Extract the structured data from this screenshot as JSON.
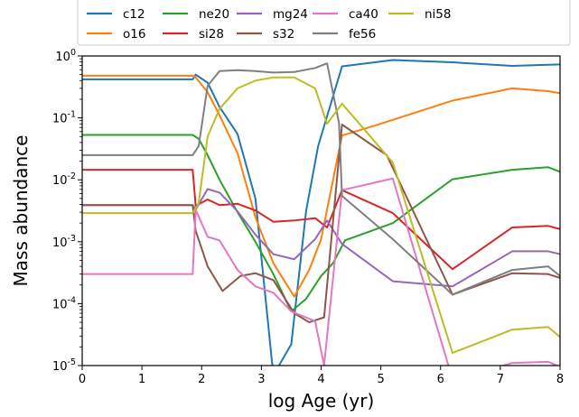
{
  "chart_data": {
    "type": "line",
    "xlabel": "log Age (yr)",
    "ylabel": "Mass abundance",
    "xlim": [
      0,
      8
    ],
    "ylim_log10": [
      -5,
      0
    ],
    "yscale": "log",
    "x_ticks": [
      "0",
      "1",
      "2",
      "3",
      "4",
      "5",
      "6",
      "7",
      "8"
    ],
    "y_ticks": [
      {
        "exp": 0,
        "base": "10",
        "sup": "0"
      },
      {
        "exp": -1,
        "base": "10",
        "sup": "-1"
      },
      {
        "exp": -2,
        "base": "10",
        "sup": "-2"
      },
      {
        "exp": -3,
        "base": "10",
        "sup": "-3"
      },
      {
        "exp": -4,
        "base": "10",
        "sup": "-4"
      },
      {
        "exp": -5,
        "base": "10",
        "sup": "-5"
      }
    ],
    "legend_position": "top",
    "grid": false,
    "series": [
      {
        "name": "c12",
        "color": "#1f77b4",
        "points": [
          [
            0,
            0.42
          ],
          [
            1.85,
            0.42
          ],
          [
            1.9,
            0.5
          ],
          [
            2.1,
            0.37
          ],
          [
            2.3,
            0.15
          ],
          [
            2.6,
            0.055
          ],
          [
            2.9,
            0.005
          ],
          [
            3.2,
            7e-06
          ],
          [
            3.5,
            2.2e-05
          ],
          [
            3.75,
            0.0032
          ],
          [
            3.95,
            0.035
          ],
          [
            4.35,
            0.68
          ],
          [
            5.2,
            0.86
          ],
          [
            6.2,
            0.79
          ],
          [
            7.2,
            0.69
          ],
          [
            7.8,
            0.72
          ],
          [
            8,
            0.73
          ]
        ]
      },
      {
        "name": "o16",
        "color": "#ff7f0e",
        "points": [
          [
            0,
            0.48
          ],
          [
            1.85,
            0.48
          ],
          [
            1.9,
            0.45
          ],
          [
            2.1,
            0.26
          ],
          [
            2.3,
            0.11
          ],
          [
            2.6,
            0.027
          ],
          [
            2.9,
            0.0025
          ],
          [
            3.2,
            0.00045
          ],
          [
            3.55,
            0.00013
          ],
          [
            3.8,
            0.00035
          ],
          [
            4.0,
            0.0011
          ],
          [
            4.35,
            0.052
          ],
          [
            4.9,
            0.075
          ],
          [
            6.2,
            0.19
          ],
          [
            7.2,
            0.3
          ],
          [
            7.8,
            0.27
          ],
          [
            8,
            0.25
          ]
        ]
      },
      {
        "name": "ne20",
        "color": "#2ca02c",
        "points": [
          [
            0,
            0.053
          ],
          [
            1.85,
            0.053
          ],
          [
            1.95,
            0.046
          ],
          [
            2.1,
            0.025
          ],
          [
            2.3,
            0.01
          ],
          [
            2.6,
            0.003
          ],
          [
            2.9,
            0.001
          ],
          [
            3.2,
            0.0003
          ],
          [
            3.5,
            7.5e-05
          ],
          [
            3.75,
            0.00012
          ],
          [
            4.0,
            0.00028
          ],
          [
            4.2,
            0.00045
          ],
          [
            4.4,
            0.00105
          ],
          [
            5.2,
            0.002
          ],
          [
            6.2,
            0.0102
          ],
          [
            7.2,
            0.0145
          ],
          [
            7.8,
            0.016
          ],
          [
            8,
            0.0135
          ]
        ]
      },
      {
        "name": "si28",
        "color": "#d62728",
        "points": [
          [
            0,
            0.0145
          ],
          [
            1.85,
            0.0145
          ],
          [
            1.9,
            0.0038
          ],
          [
            2.1,
            0.0048
          ],
          [
            2.3,
            0.0039
          ],
          [
            2.6,
            0.0041
          ],
          [
            2.9,
            0.0032
          ],
          [
            3.2,
            0.0021
          ],
          [
            3.55,
            0.0022
          ],
          [
            3.9,
            0.0024
          ],
          [
            4.1,
            0.0017
          ],
          [
            4.35,
            0.0068
          ],
          [
            5.2,
            0.0029
          ],
          [
            6.2,
            0.00036
          ],
          [
            7.2,
            0.0017
          ],
          [
            7.8,
            0.0018
          ],
          [
            8,
            0.0016
          ]
        ]
      },
      {
        "name": "mg24",
        "color": "#9467bd",
        "points": [
          [
            0,
            0.0039
          ],
          [
            1.85,
            0.0039
          ],
          [
            1.9,
            0.0033
          ],
          [
            2.1,
            0.0071
          ],
          [
            2.3,
            0.0062
          ],
          [
            2.6,
            0.0031
          ],
          [
            2.9,
            0.0013
          ],
          [
            3.2,
            0.00063
          ],
          [
            3.55,
            0.00052
          ],
          [
            3.9,
            0.0011
          ],
          [
            4.1,
            0.0022
          ],
          [
            4.35,
            0.00092
          ],
          [
            5.2,
            0.00023
          ],
          [
            6.2,
            0.00019
          ],
          [
            7.2,
            0.0007
          ],
          [
            7.8,
            0.0007
          ],
          [
            8,
            0.00063
          ]
        ]
      },
      {
        "name": "s32",
        "color": "#8c564b",
        "points": [
          [
            0,
            0.0039
          ],
          [
            1.85,
            0.0039
          ],
          [
            1.9,
            0.0015
          ],
          [
            2.1,
            0.0004
          ],
          [
            2.35,
            0.00016
          ],
          [
            2.65,
            0.00028
          ],
          [
            2.9,
            0.00031
          ],
          [
            3.2,
            0.00024
          ],
          [
            3.55,
            7e-05
          ],
          [
            3.8,
            5e-05
          ],
          [
            4.05,
            6e-05
          ],
          [
            4.35,
            0.078
          ],
          [
            5.1,
            0.025
          ],
          [
            6.2,
            0.00014
          ],
          [
            7.2,
            0.00031
          ],
          [
            7.8,
            0.0003
          ],
          [
            8,
            0.00026
          ]
        ]
      },
      {
        "name": "ca40",
        "color": "#e377c2",
        "points": [
          [
            0,
            0.0003
          ],
          [
            1.85,
            0.0003
          ],
          [
            1.9,
            0.0033
          ],
          [
            2.1,
            0.0012
          ],
          [
            2.3,
            0.00105
          ],
          [
            2.6,
            0.00035
          ],
          [
            2.9,
            0.00019
          ],
          [
            3.2,
            0.00015
          ],
          [
            3.5,
            7.5e-05
          ],
          [
            3.9,
            5.2e-05
          ],
          [
            4.05,
            1e-05
          ],
          [
            4.35,
            0.0068
          ],
          [
            5.2,
            0.0105
          ],
          [
            6.2,
            6e-06
          ],
          [
            7.2,
            1.1e-05
          ],
          [
            7.8,
            1.15e-05
          ],
          [
            8,
            9.5e-06
          ]
        ]
      },
      {
        "name": "fe56",
        "color": "#7f7f7f",
        "points": [
          [
            0,
            0.025
          ],
          [
            1.85,
            0.025
          ],
          [
            1.95,
            0.035
          ],
          [
            2.1,
            0.33
          ],
          [
            2.3,
            0.57
          ],
          [
            2.6,
            0.59
          ],
          [
            2.9,
            0.57
          ],
          [
            3.2,
            0.54
          ],
          [
            3.55,
            0.55
          ],
          [
            3.9,
            0.64
          ],
          [
            4.1,
            0.76
          ],
          [
            4.3,
            0.082
          ],
          [
            4.35,
            0.0055
          ],
          [
            5.2,
            0.0011
          ],
          [
            6.2,
            0.00014
          ],
          [
            7.2,
            0.00035
          ],
          [
            7.8,
            0.0004
          ],
          [
            8,
            0.00028
          ]
        ]
      },
      {
        "name": "ni58",
        "color": "#bcbd22",
        "points": [
          [
            0,
            0.0029
          ],
          [
            1.85,
            0.0029
          ],
          [
            1.95,
            0.0042
          ],
          [
            2.1,
            0.05
          ],
          [
            2.3,
            0.14
          ],
          [
            2.6,
            0.3
          ],
          [
            2.9,
            0.4
          ],
          [
            3.2,
            0.45
          ],
          [
            3.55,
            0.45
          ],
          [
            3.9,
            0.3
          ],
          [
            4.1,
            0.08
          ],
          [
            4.35,
            0.17
          ],
          [
            5.2,
            0.019
          ],
          [
            6.2,
            1.6e-05
          ],
          [
            7.2,
            3.8e-05
          ],
          [
            7.8,
            4.2e-05
          ],
          [
            8,
            2.9e-05
          ]
        ]
      }
    ]
  }
}
